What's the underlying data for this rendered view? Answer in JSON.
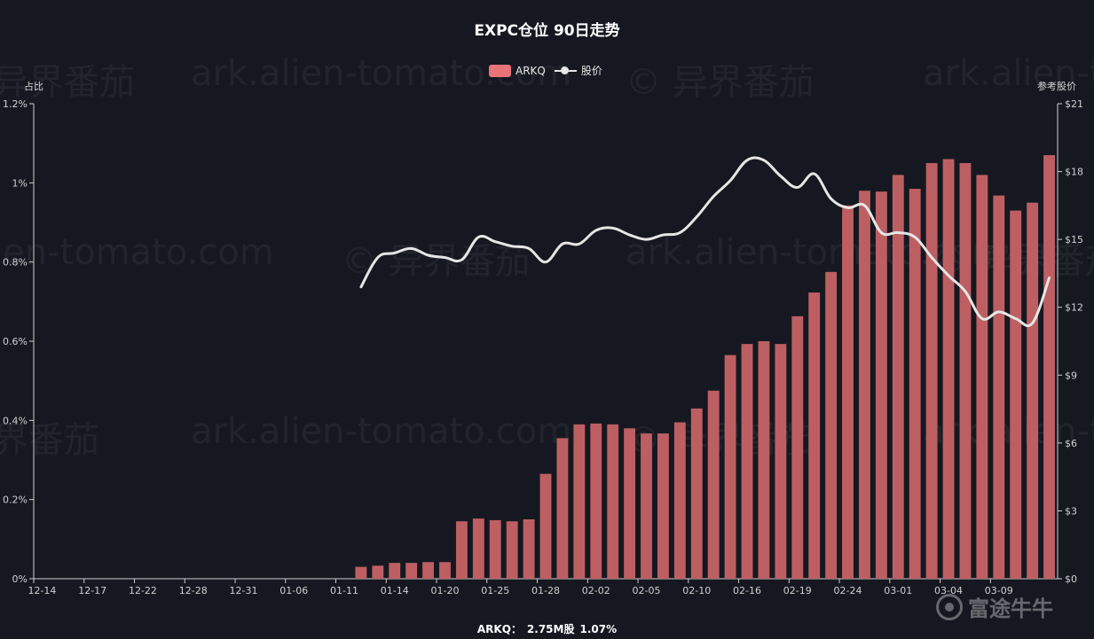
{
  "title": "EXPC仓位 90日走势",
  "legend": {
    "bar_label": "ARKQ",
    "line_label": "股价"
  },
  "axis": {
    "left_name": "占比",
    "right_name": "参考股价"
  },
  "watermarks": [
    "异界番茄",
    "ark.alien-tomato.com",
    "© 异界番茄",
    "ark.alien-to",
    "ien-tomato.com",
    "© 异界番茄",
    "ark.alien-tomato.com",
    "© 异界番茄",
    "界番茄",
    "ark.alien-tomato.com",
    "© 异界番茄",
    "ark.alien-to"
  ],
  "footer": {
    "fund": "ARKQ：",
    "shares": "2.75M股",
    "percent": "1.07%"
  },
  "logo_text": "富途牛牛",
  "colors": {
    "bar": "#bd5f62",
    "line": "#e6e6e6",
    "axis": "#cfcfcf",
    "background": "#161821"
  },
  "chart_data": {
    "type": "bar",
    "title": "EXPC仓位 90日走势",
    "legend_position": "top-center",
    "grid": false,
    "x_tick_labels": [
      "12-14",
      "12-17",
      "12-22",
      "12-28",
      "12-31",
      "01-06",
      "01-11",
      "01-14",
      "01-20",
      "01-25",
      "01-28",
      "02-02",
      "02-05",
      "02-10",
      "02-16",
      "02-19",
      "02-24",
      "03-01",
      "03-04",
      "03-09"
    ],
    "y_left": {
      "name": "占比",
      "ylim": [
        0,
        1.2
      ],
      "ticks": [
        0,
        0.2,
        0.4,
        0.6,
        0.8,
        1.0,
        1.2
      ],
      "tick_labels": [
        "0%",
        "0.2%",
        "0.4%",
        "0.6%",
        "0.8%",
        "1%",
        "1.2%"
      ]
    },
    "y_right": {
      "name": "参考股价",
      "ylim": [
        0,
        21
      ],
      "ticks": [
        0,
        3,
        6,
        9,
        12,
        15,
        18,
        21
      ],
      "tick_labels": [
        "$0",
        "$3",
        "$6",
        "$9",
        "$12",
        "$15",
        "$18",
        "$21"
      ]
    },
    "series": [
      {
        "name": "ARKQ",
        "type": "bar",
        "axis": "left",
        "values": [
          0,
          0,
          0,
          0,
          0,
          0,
          0,
          0,
          0,
          0,
          0,
          0,
          0,
          0,
          0,
          0,
          0,
          0,
          0,
          0.03,
          0.033,
          0.04,
          0.04,
          0.042,
          0.042,
          0.145,
          0.152,
          0.148,
          0.145,
          0.15,
          0.265,
          0.355,
          0.39,
          0.392,
          0.39,
          0.38,
          0.367,
          0.367,
          0.395,
          0.43,
          0.475,
          0.565,
          0.593,
          0.6,
          0.593,
          0.663,
          0.723,
          0.775,
          0.943,
          0.98,
          0.978,
          1.02,
          0.985,
          1.05,
          1.06,
          1.05,
          1.02,
          0.968,
          0.93,
          0.95,
          1.07
        ]
      },
      {
        "name": "股价",
        "type": "line",
        "axis": "right",
        "values": [
          null,
          null,
          null,
          null,
          null,
          null,
          null,
          null,
          null,
          null,
          null,
          null,
          null,
          null,
          null,
          null,
          null,
          null,
          null,
          12.9,
          14.2,
          14.4,
          14.6,
          14.3,
          14.2,
          14.1,
          15.1,
          14.9,
          14.7,
          14.6,
          14.0,
          14.8,
          14.8,
          15.4,
          15.5,
          15.2,
          15.0,
          15.2,
          15.3,
          16.0,
          16.9,
          17.6,
          18.5,
          18.5,
          17.8,
          17.3,
          17.9,
          16.8,
          16.4,
          16.5,
          15.3,
          15.3,
          15.1,
          14.2,
          13.4,
          12.7,
          11.5,
          11.8,
          11.5,
          11.3,
          13.3
        ]
      }
    ]
  }
}
